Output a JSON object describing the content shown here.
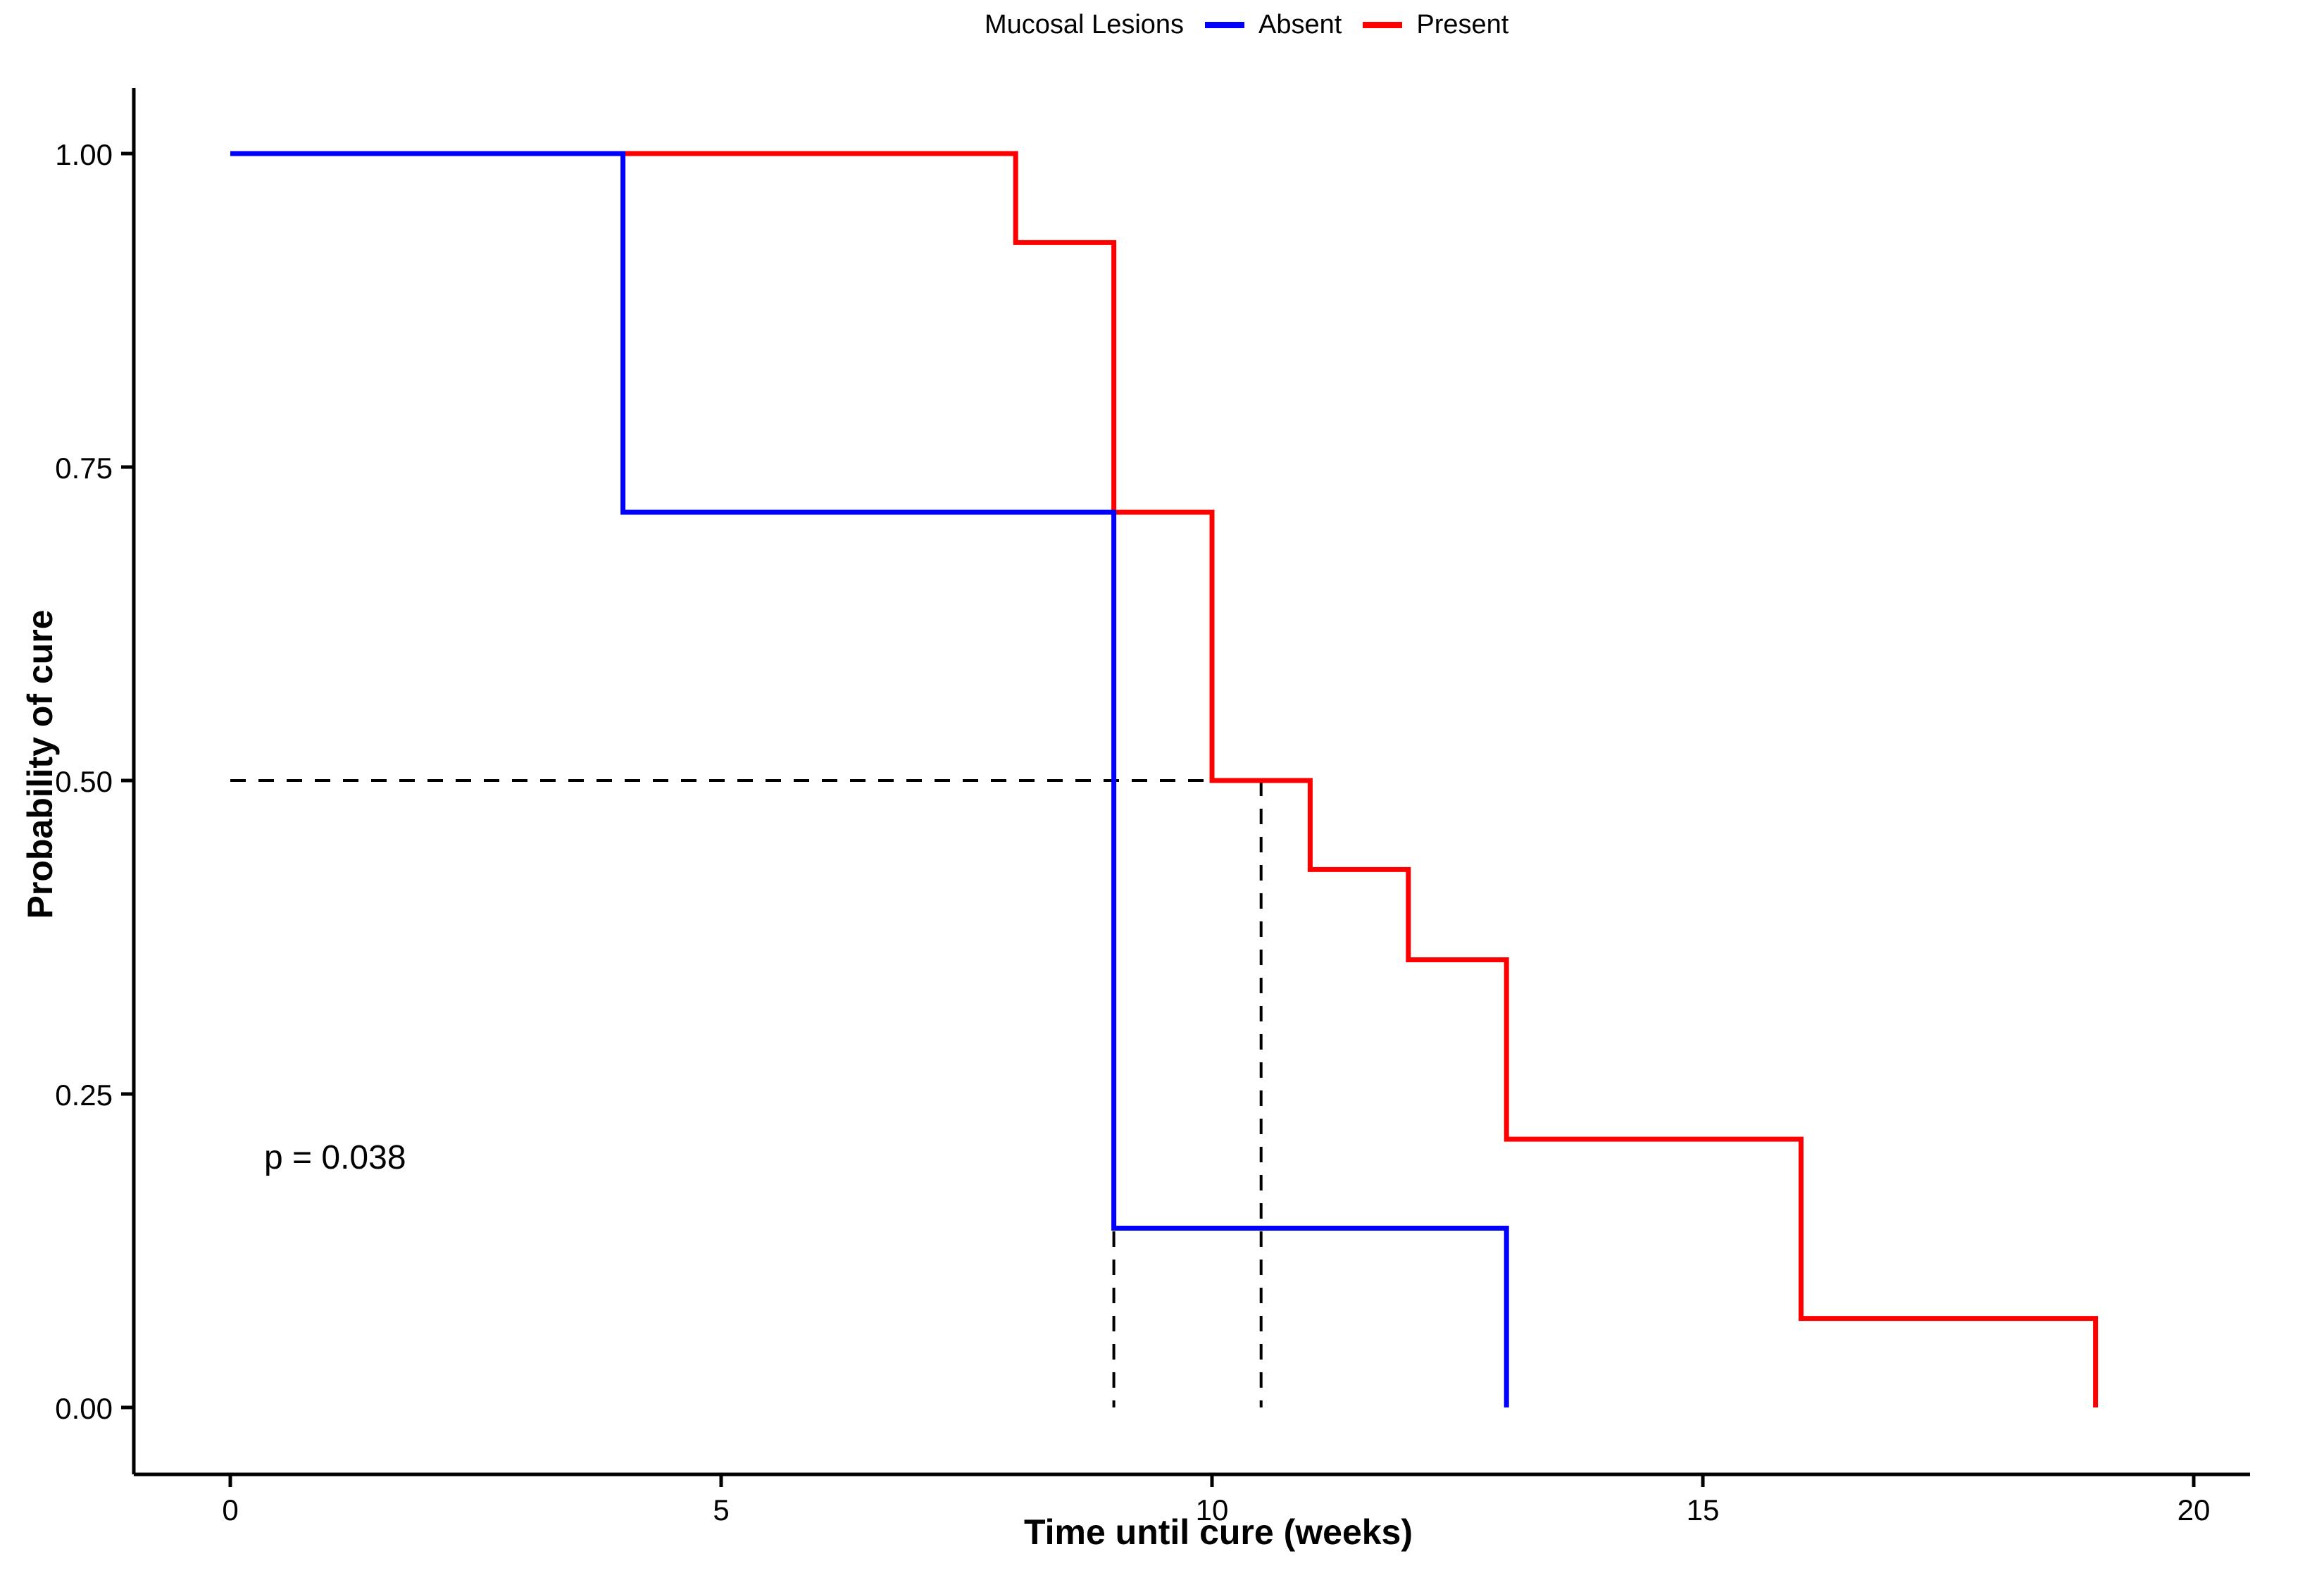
{
  "chart_data": {
    "type": "line",
    "subtype": "kaplan-meier-step",
    "title": "",
    "xlabel": "Time until cure (weeks)",
    "ylabel": "Probability of cure",
    "xlim": [
      0,
      20.6
    ],
    "ylim": [
      0,
      1.05
    ],
    "grid": false,
    "xticks": [
      {
        "value": 0,
        "label": "0"
      },
      {
        "value": 5,
        "label": "5"
      },
      {
        "value": 10,
        "label": "10"
      },
      {
        "value": 15,
        "label": "15"
      },
      {
        "value": 20,
        "label": "20"
      }
    ],
    "yticks": [
      {
        "value": 0.0,
        "label": "0.00"
      },
      {
        "value": 0.25,
        "label": "0.25"
      },
      {
        "value": 0.5,
        "label": "0.50"
      },
      {
        "value": 0.75,
        "label": "0.75"
      },
      {
        "value": 1.0,
        "label": "1.00"
      }
    ],
    "legend": {
      "position": "top",
      "title": "Mucosal Lesions",
      "entries": [
        {
          "label": "Absent",
          "color": "#0000ff"
        },
        {
          "label": "Present",
          "color": "#ff0000"
        }
      ]
    },
    "annotation": {
      "text": "p = 0.038"
    },
    "series": [
      {
        "name": "Absent",
        "color": "#0000ff",
        "steps": [
          [
            0,
            1.0
          ],
          [
            4,
            0.714
          ],
          [
            9,
            0.143
          ],
          [
            13,
            0.0
          ]
        ]
      },
      {
        "name": "Present",
        "color": "#ff0000",
        "steps": [
          [
            0,
            1.0
          ],
          [
            8,
            0.929
          ],
          [
            9,
            0.714
          ],
          [
            10,
            0.5
          ],
          [
            11,
            0.429
          ],
          [
            12,
            0.357
          ],
          [
            13,
            0.214
          ],
          [
            16,
            0.071
          ],
          [
            19,
            0.0
          ]
        ]
      }
    ],
    "median_guides": {
      "survival_level": 0.5,
      "horizontal_from_x": 0,
      "horizontal_to_x": 10.5,
      "vertical_at_x": [
        9,
        10.5
      ],
      "line_color": "#000000"
    },
    "axis_color": "#000000",
    "background": "#ffffff"
  }
}
